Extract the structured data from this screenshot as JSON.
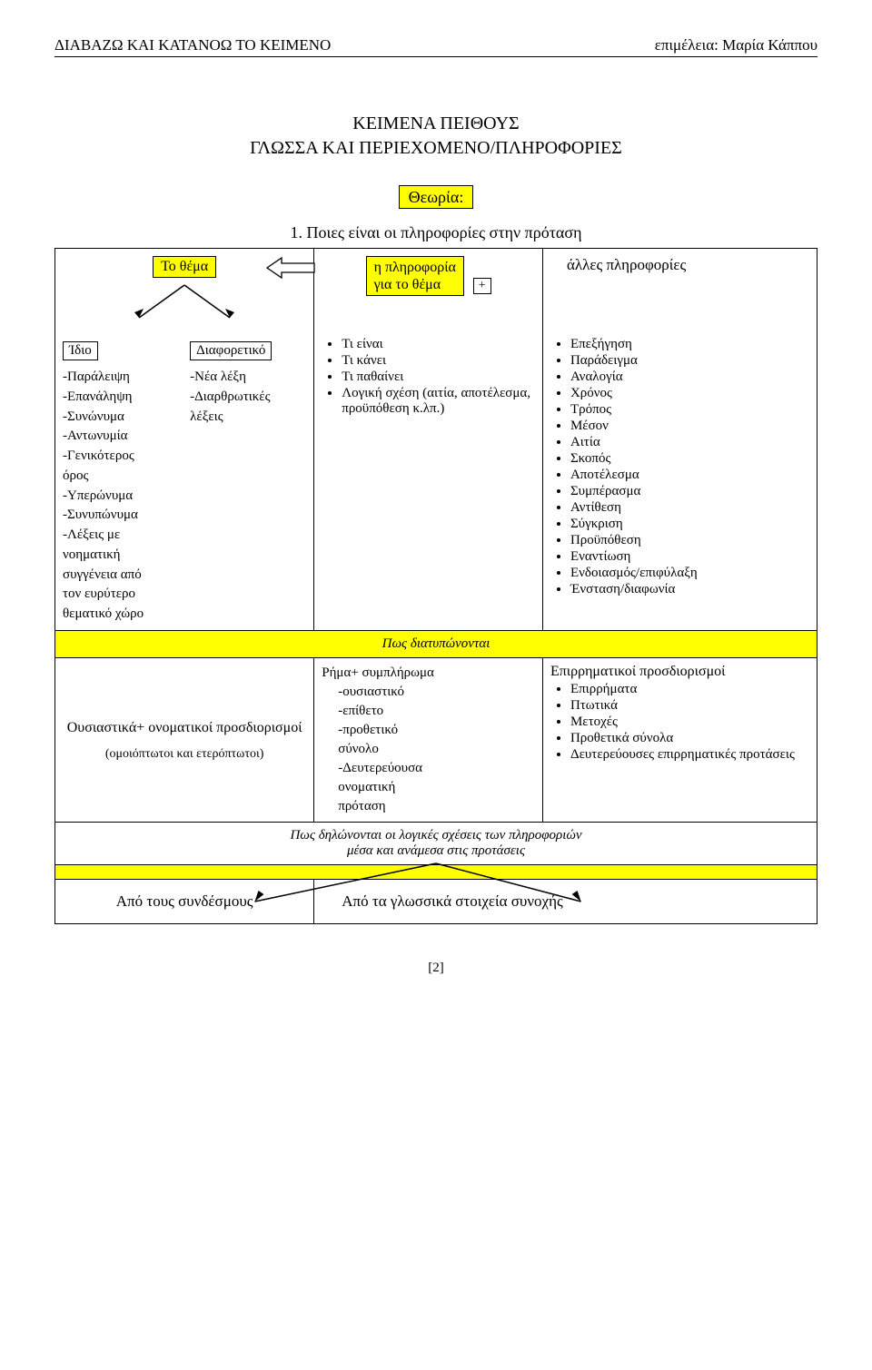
{
  "header": {
    "left": "ΔΙΑΒΑΖΩ ΚΑΙ ΚΑΤΑΝΟΩ ΤΟ ΚΕΙΜΕΝΟ",
    "right": "επιμέλεια: Μαρία Κάππου"
  },
  "title": {
    "line1": "ΚΕΙΜΕΝΑ ΠΕΙΘΟΥΣ",
    "line2": "ΓΛΩΣΣΑ ΚΑΙ ΠΕΡΙΕΧΟΜΕΝΟ/ΠΛΗΡΟΦΟΡΙΕΣ"
  },
  "theory_label": "Θεωρία:",
  "numline": "1. Ποιες είναι οι πληροφορίες στην πρόταση",
  "heads": {
    "topic": "Το θέμα",
    "info": "η πληροφορία",
    "info_sub": "για το θέμα",
    "other": "άλλες πληροφορίες",
    "plus": "+"
  },
  "col1": {
    "same": "Ίδιο",
    "diff": "Διαφορετικό",
    "same_items": [
      "-Παράλειψη",
      "-Επανάληψη",
      "-Συνώνυμα",
      "-Αντωνυμία",
      "-Γενικότερος",
      "όρος",
      "-Υπερώνυμα",
      "-Συνυπώνυμα",
      "-Λέξεις με",
      "νοηματική",
      "συγγένεια από",
      "τον ευρύτερο",
      "θεματικό χώρο"
    ],
    "diff_items": [
      "-Νέα λέξη",
      "-Διαρθρωτικές",
      "λέξεις"
    ]
  },
  "col2": {
    "items": [
      "Τι είναι",
      "Τι κάνει",
      "Τι παθαίνει",
      "Λογική σχέση (αιτία, αποτέλεσμα, προϋπόθεση κ.λπ.)"
    ]
  },
  "col3": {
    "items": [
      "Επεξήγηση",
      "Παράδειγμα",
      "Αναλογία",
      "Χρόνος",
      "Τρόπος",
      "Μέσον",
      "Αιτία",
      "Σκοπός",
      "Αποτέλεσμα",
      "Συμπέρασμα",
      "Αντίθεση",
      "Σύγκριση",
      "Προϋπόθεση",
      "Εναντίωση",
      "Ενδοιασμός/επιφύλαξη",
      "Ένσταση/διαφωνία"
    ]
  },
  "section_how": "Πως διατυπώνονται",
  "row_how": {
    "left_title": "Ουσιαστικά+ ονοματικοί προσδιορισμοί",
    "left_sub": "(ομοιόπτωτοι και ετερόπτωτοι)",
    "mid_title": "Ρήμα+ συμπλήρωμα",
    "mid_items": [
      "-ουσιαστικό",
      "-επίθετο",
      "-προθετικό",
      " σύνολο",
      "-Δευτερεύουσα",
      " ονοματική",
      " πρόταση"
    ],
    "right_title": "Επιρρηματικοί προσδιορισμοί",
    "right_items": [
      "Επιρρήματα",
      "Πτωτικά",
      "Μετοχές",
      "Προθετικά σύνολα",
      "Δευτερεύουσες επιρρηματικές προτάσεις"
    ]
  },
  "section_rel": {
    "line1": "Πως δηλώνονται οι λογικές σχέσεις των πληροφοριών",
    "line2": "μέσα και ανάμεσα στις προτάσεις"
  },
  "connectors": {
    "left": "Από τους συνδέσμους",
    "right": "Από τα γλωσσικά στοιχεία συνοχής"
  },
  "footer": "[2]",
  "colors": {
    "highlight": "#ffff00",
    "line": "#000000",
    "bg": "#ffffff"
  }
}
